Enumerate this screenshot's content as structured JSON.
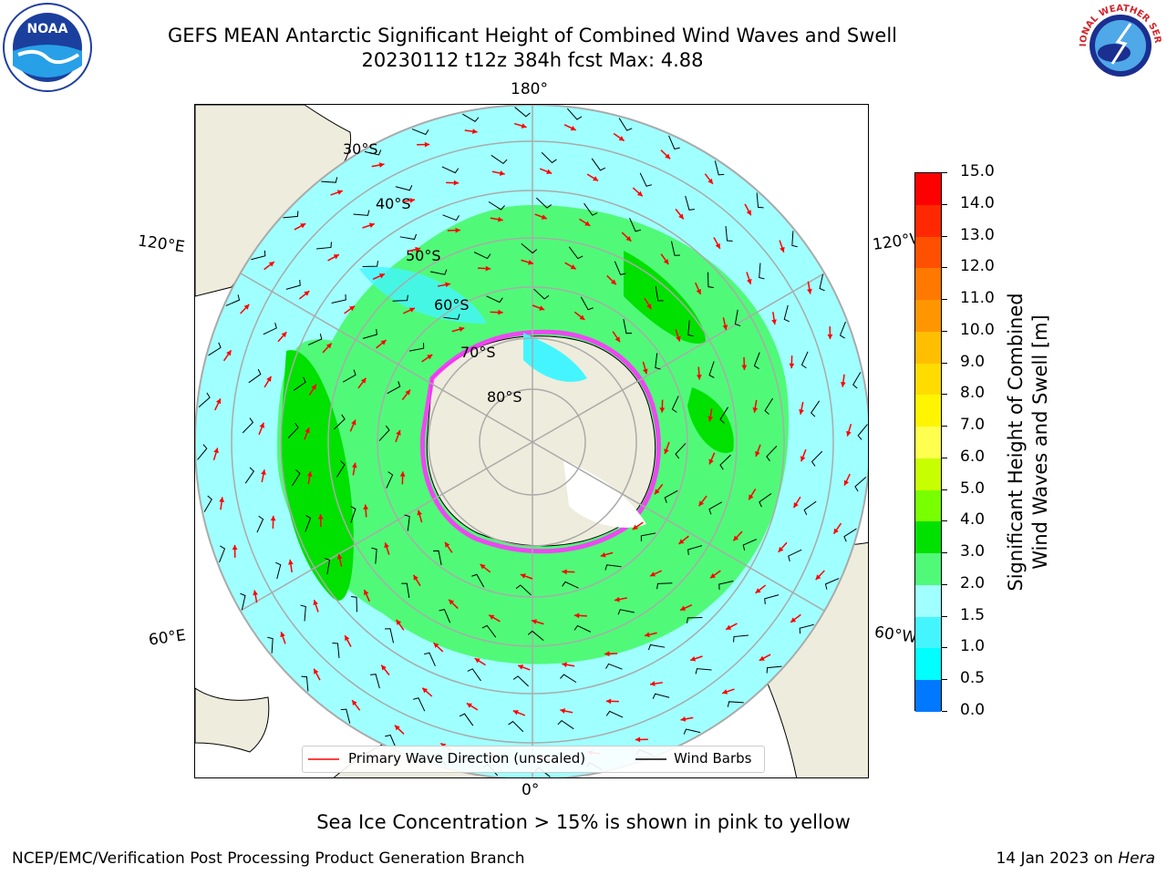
{
  "title_line1": "GEFS MEAN Antarctic Significant Height of Combined Wind Waves and Swell",
  "title_line2": "20230112 t12z 384h fcst   Max: 4.88",
  "logos": {
    "left": "NOAA",
    "right": "NATIONAL WEATHER SERVICE"
  },
  "map": {
    "projection": "south-polar-stereographic",
    "lon_labels": {
      "top": "180°",
      "bottom": "0°",
      "left_upper": "120°E",
      "left_lower": "60°E",
      "right_upper": "120°W",
      "right_lower": "60°W"
    },
    "lat_labels": [
      "30°S",
      "40°S",
      "50°S",
      "60°S",
      "70°S",
      "80°S"
    ],
    "colors": {
      "ocean_low": "#a0ffff",
      "ocean_mid": "#44f5ff",
      "wave_3_4": "#50fa78",
      "wave_4_5": "#00e100",
      "land": "#eeecdc",
      "ice": "#ff33ff",
      "wave_arrow": "#ff0000",
      "wind_barb": "#000000"
    }
  },
  "legend": {
    "wave": "Primary Wave Direction (unscaled)",
    "wind": "Wind Barbs"
  },
  "colorbar": {
    "label_line1": "Significant Height of Combined",
    "label_line2": "Wind Waves and Swell [m]",
    "ticks": [
      "15.0",
      "14.0",
      "13.0",
      "12.0",
      "11.0",
      "10.0",
      "9.0",
      "8.0",
      "7.0",
      "6.0",
      "5.0",
      "4.0",
      "3.0",
      "2.0",
      "1.5",
      "1.0",
      "0.5",
      "0.0"
    ],
    "colors": [
      "#ff0000",
      "#ff2800",
      "#ff5000",
      "#ff7800",
      "#ff9600",
      "#ffbe00",
      "#ffdc00",
      "#fff500",
      "#ffff50",
      "#c8ff00",
      "#78ff00",
      "#00e100",
      "#50fa78",
      "#a0ffff",
      "#44f5ff",
      "#00ffff",
      "#0078ff",
      "#0000ff"
    ]
  },
  "caption": "Sea Ice Concentration > 15% is shown in pink to yellow",
  "footer_left": "NCEP/EMC/Verification Post Processing Product Generation Branch",
  "footer_right_date": "14 Jan 2023 on ",
  "footer_right_machine": "Hera"
}
